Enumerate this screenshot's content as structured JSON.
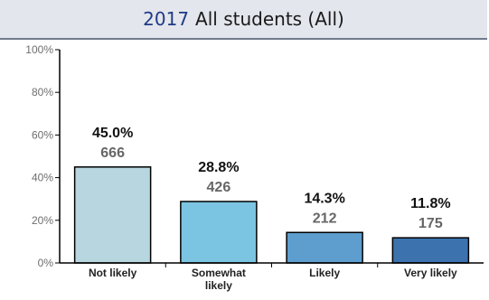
{
  "header": {
    "year": "2017",
    "subtitle": "All students (All)"
  },
  "chart_data": {
    "type": "bar",
    "title": "2017 All students (All)",
    "xlabel": "",
    "ylabel": "",
    "ylim": [
      0,
      100
    ],
    "yticks": [
      "0%",
      "20%",
      "40%",
      "60%",
      "80%",
      "100%"
    ],
    "categories": [
      [
        "Not likely"
      ],
      [
        "Somewhat",
        "likely"
      ],
      [
        "Likely"
      ],
      [
        "Very likely"
      ]
    ],
    "values": [
      45.0,
      28.8,
      14.3,
      11.8
    ],
    "percent_labels": [
      "45.0%",
      "28.8%",
      "14.3%",
      "11.8%"
    ],
    "counts": [
      "666",
      "426",
      "212",
      "175"
    ],
    "colors": [
      "#b8d6e0",
      "#7cc5e2",
      "#5e9ecf",
      "#3c72ae"
    ],
    "grid": false
  }
}
